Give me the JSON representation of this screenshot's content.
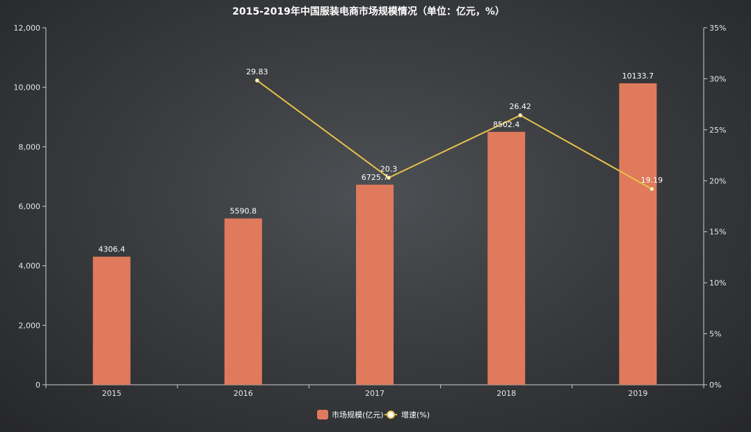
{
  "chart_data": {
    "type": "bar",
    "title": "2015-2019年中国服装电商市场规模情况（单位：亿元，%）",
    "categories": [
      "2015",
      "2016",
      "2017",
      "2018",
      "2019"
    ],
    "series": [
      {
        "name": "市场规模(亿元)",
        "type": "bar",
        "axis": "left",
        "color": "#e07a5c",
        "values": [
          4306.4,
          5590.8,
          6725.7,
          8502.4,
          10133.7
        ],
        "labels": [
          "4306.4",
          "5590.8",
          "6725.7",
          "8502.4",
          "10133.7"
        ]
      },
      {
        "name": "增速(%)",
        "type": "line",
        "axis": "right",
        "color": "#e8c24a",
        "values": [
          null,
          29.83,
          20.3,
          26.42,
          19.19
        ],
        "labels": [
          "",
          "29.83",
          "20.3",
          "26.42",
          "19.19"
        ]
      }
    ],
    "y_left": {
      "min": 0,
      "max": 12000,
      "ticks": [
        "0",
        "2,000",
        "4,000",
        "6,000",
        "8,000",
        "10,000",
        "12,000"
      ]
    },
    "y_right": {
      "min": 0,
      "max": 35,
      "ticks": [
        "0%",
        "5%",
        "10%",
        "15%",
        "20%",
        "25%",
        "30%",
        "35%"
      ]
    },
    "grid": false,
    "legend_position": "bottom-center"
  }
}
